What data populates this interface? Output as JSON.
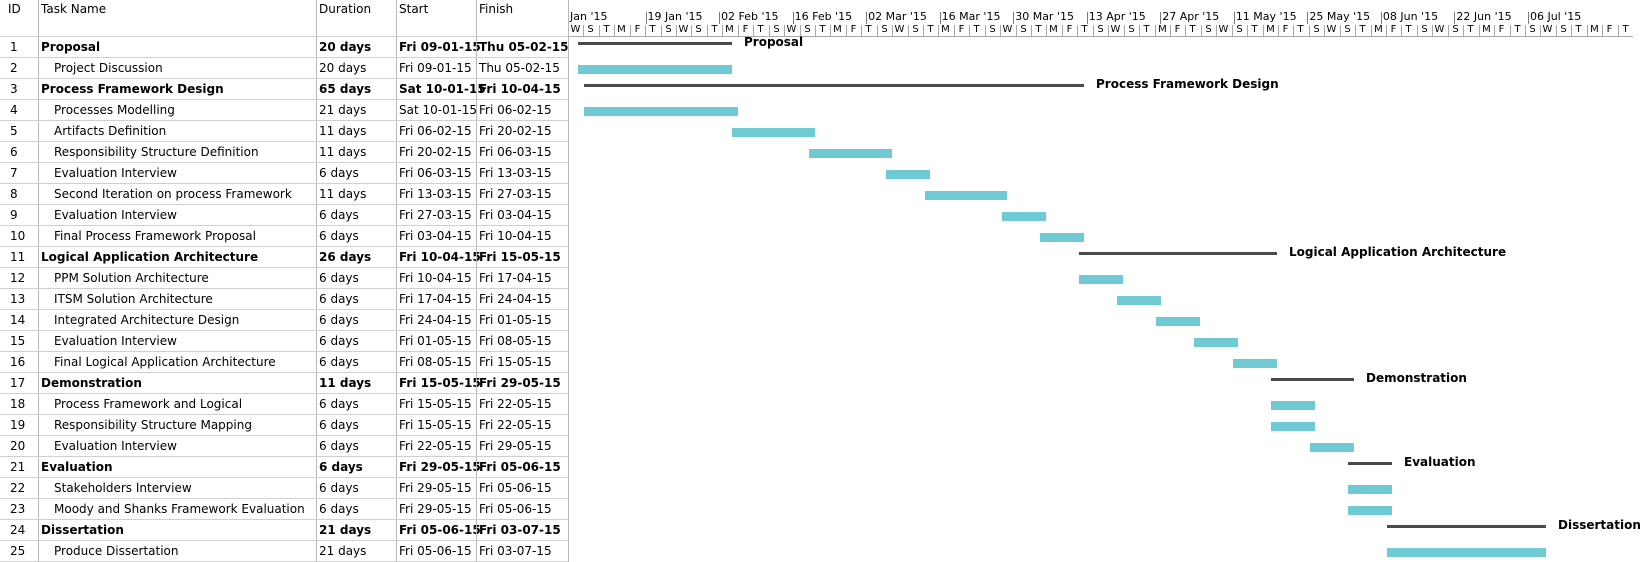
{
  "columns": {
    "id": "ID",
    "name": "Task Name",
    "duration": "Duration",
    "start": "Start",
    "finish": "Finish"
  },
  "timeline": {
    "week_labels": [
      "Jan '15",
      "19 Jan '15",
      "02 Feb '15",
      "16 Feb '15",
      "02 Mar '15",
      "16 Mar '15",
      "30 Mar '15",
      "13 Apr '15",
      "27 Apr '15",
      "11 May '15",
      "25 May '15",
      "08 Jun '15",
      "22 Jun '15",
      "06 Jul '15"
    ],
    "day_labels": [
      "W",
      "S",
      "T",
      "M",
      "F",
      "T",
      "S",
      "W",
      "S",
      "T",
      "M",
      "F",
      "T",
      "S",
      "W",
      "S",
      "T",
      "M",
      "F",
      "T",
      "S",
      "W",
      "S",
      "T",
      "M",
      "F",
      "T",
      "S",
      "W",
      "S",
      "T",
      "M",
      "F",
      "T",
      "S",
      "W",
      "S",
      "T",
      "M",
      "F",
      "T",
      "S",
      "W",
      "S",
      "T",
      "M",
      "F",
      "T",
      "S",
      "W",
      "S",
      "T",
      "M",
      "F",
      "T",
      "S",
      "W",
      "S",
      "T",
      "M",
      "F",
      "T",
      "S",
      "W",
      "S",
      "T",
      "M",
      "F",
      "T"
    ]
  },
  "tasks": [
    {
      "id": "1",
      "name": "Proposal",
      "duration": "20 days",
      "start": "Fri 09-01-15",
      "finish": "Thu 05-02-15",
      "summary": true
    },
    {
      "id": "2",
      "name": "Project Discussion",
      "duration": "20 days",
      "start": "Fri 09-01-15",
      "finish": "Thu 05-02-15",
      "summary": false
    },
    {
      "id": "3",
      "name": "Process Framework Design",
      "duration": "65 days",
      "start": "Sat 10-01-15",
      "finish": "Fri 10-04-15",
      "summary": true
    },
    {
      "id": "4",
      "name": "Processes Modelling",
      "duration": "21 days",
      "start": "Sat 10-01-15",
      "finish": "Fri 06-02-15",
      "summary": false
    },
    {
      "id": "5",
      "name": "Artifacts Definition",
      "duration": "11 days",
      "start": "Fri 06-02-15",
      "finish": "Fri 20-02-15",
      "summary": false
    },
    {
      "id": "6",
      "name": "Responsibility  Structure Definition",
      "duration": "11 days",
      "start": "Fri 20-02-15",
      "finish": "Fri 06-03-15",
      "summary": false
    },
    {
      "id": "7",
      "name": "Evaluation Interview",
      "duration": "6 days",
      "start": "Fri 06-03-15",
      "finish": "Fri 13-03-15",
      "summary": false
    },
    {
      "id": "8",
      "name": "Second Iteration on process Framework",
      "duration": "11 days",
      "start": "Fri 13-03-15",
      "finish": "Fri 27-03-15",
      "summary": false
    },
    {
      "id": "9",
      "name": "Evaluation Interview",
      "duration": "6 days",
      "start": "Fri 27-03-15",
      "finish": "Fri 03-04-15",
      "summary": false
    },
    {
      "id": "10",
      "name": "Final Process Framework Proposal",
      "duration": "6 days",
      "start": "Fri 03-04-15",
      "finish": "Fri 10-04-15",
      "summary": false
    },
    {
      "id": "11",
      "name": "Logical Application Architecture",
      "duration": "26 days",
      "start": "Fri 10-04-15",
      "finish": "Fri 15-05-15",
      "summary": true
    },
    {
      "id": "12",
      "name": "PPM Solution Architecture",
      "duration": "6 days",
      "start": "Fri 10-04-15",
      "finish": "Fri 17-04-15",
      "summary": false
    },
    {
      "id": "13",
      "name": "ITSM Solution Architecture",
      "duration": "6 days",
      "start": "Fri 17-04-15",
      "finish": "Fri 24-04-15",
      "summary": false
    },
    {
      "id": "14",
      "name": "Integrated Architecture Design",
      "duration": "6 days",
      "start": "Fri 24-04-15",
      "finish": "Fri 01-05-15",
      "summary": false
    },
    {
      "id": "15",
      "name": "Evaluation Interview",
      "duration": "6 days",
      "start": "Fri 01-05-15",
      "finish": "Fri 08-05-15",
      "summary": false
    },
    {
      "id": "16",
      "name": "Final Logical Application Architecture",
      "duration": "6 days",
      "start": "Fri 08-05-15",
      "finish": "Fri 15-05-15",
      "summary": false
    },
    {
      "id": "17",
      "name": "Demonstration",
      "duration": "11 days",
      "start": "Fri 15-05-15",
      "finish": "Fri 29-05-15",
      "summary": true
    },
    {
      "id": "18",
      "name": "Process Framework and Logical",
      "duration": "6 days",
      "start": "Fri 15-05-15",
      "finish": "Fri 22-05-15",
      "summary": false
    },
    {
      "id": "19",
      "name": "Responsibility Structure Mapping",
      "duration": "6 days",
      "start": "Fri 15-05-15",
      "finish": "Fri 22-05-15",
      "summary": false
    },
    {
      "id": "20",
      "name": "Evaluation Interview",
      "duration": "6 days",
      "start": "Fri 22-05-15",
      "finish": "Fri 29-05-15",
      "summary": false
    },
    {
      "id": "21",
      "name": "Evaluation",
      "duration": "6 days",
      "start": "Fri 29-05-15",
      "finish": "Fri 05-06-15",
      "summary": true
    },
    {
      "id": "22",
      "name": "Stakeholders Interview",
      "duration": "6 days",
      "start": "Fri 29-05-15",
      "finish": "Fri 05-06-15",
      "summary": false
    },
    {
      "id": "23",
      "name": "Moody and Shanks Framework Evaluation",
      "duration": "6 days",
      "start": "Fri 29-05-15",
      "finish": "Fri 05-06-15",
      "summary": false
    },
    {
      "id": "24",
      "name": "Dissertation",
      "duration": "21 days",
      "start": "Fri 05-06-15",
      "finish": "Fri 03-07-15",
      "summary": true
    },
    {
      "id": "25",
      "name": "Produce Dissertation",
      "duration": "21 days",
      "start": "Fri 05-06-15",
      "finish": "Fri 03-07-15",
      "summary": false
    }
  ],
  "colors": {
    "task_bar": "#6fcad3",
    "summary_bar": "#4a4a4a",
    "grid": "#b8b8b8"
  }
}
